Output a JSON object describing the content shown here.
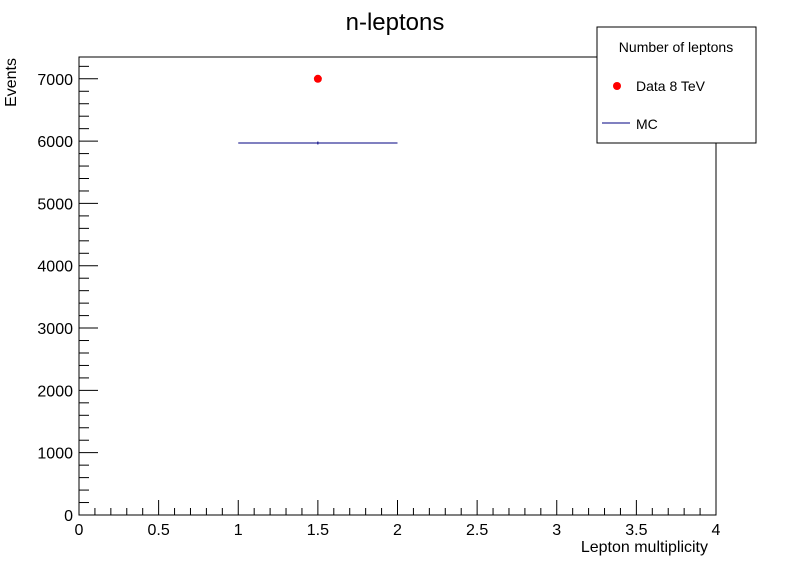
{
  "chart_data": {
    "type": "scatter",
    "title": "n-leptons",
    "xlabel": "Lepton multiplicity",
    "ylabel": "Events",
    "xlim": [
      0,
      4
    ],
    "ylim": [
      0,
      7350
    ],
    "x_ticks": [
      0,
      0.5,
      1,
      1.5,
      2,
      2.5,
      3,
      3.5,
      4
    ],
    "x_tick_labels": [
      "0",
      "0.5",
      "1",
      "1.5",
      "2",
      "2.5",
      "3",
      "3.5",
      "4"
    ],
    "y_ticks": [
      0,
      1000,
      2000,
      3000,
      4000,
      5000,
      6000,
      7000
    ],
    "y_tick_labels": [
      "0",
      "1000",
      "2000",
      "3000",
      "4000",
      "5000",
      "6000",
      "7000"
    ],
    "grid": false,
    "legend": {
      "title": "Number of leptons",
      "placement": "top-right",
      "entries": [
        {
          "label": "Data 8 TeV",
          "marker": "circle",
          "color": "#ff0000"
        },
        {
          "label": "MC",
          "marker": "line",
          "color": "#000080"
        }
      ]
    },
    "series": [
      {
        "name": "Data 8 TeV",
        "style": "points",
        "color": "#ff0000",
        "points": [
          {
            "x": 1.5,
            "y": 7000
          }
        ]
      },
      {
        "name": "MC",
        "style": "histogram",
        "color": "#000080",
        "bins": [
          {
            "x_low": 1,
            "x_high": 2,
            "y": 5970
          }
        ]
      }
    ]
  }
}
